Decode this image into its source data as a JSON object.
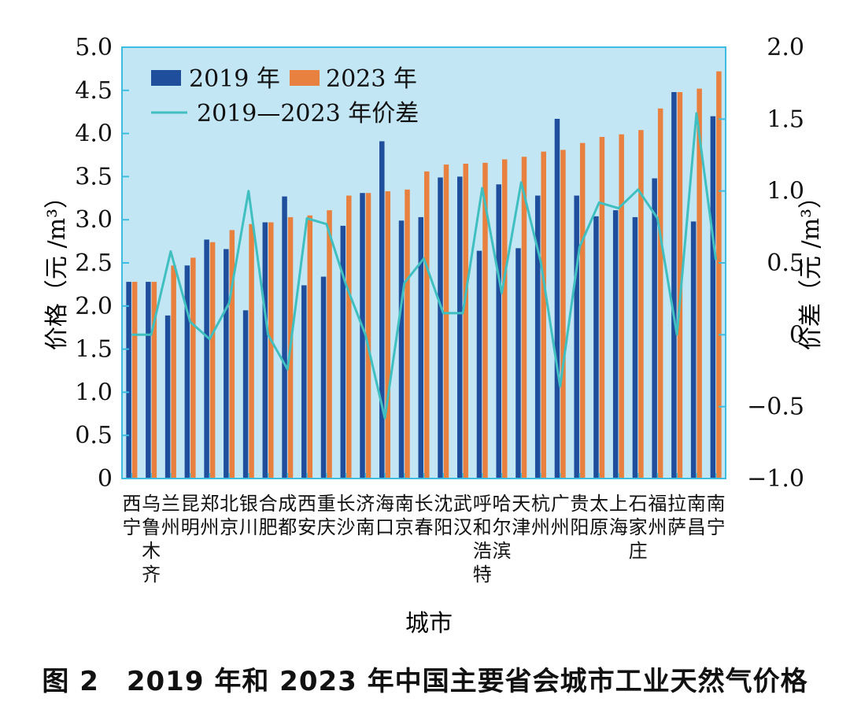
{
  "caption": "图 2　2019 年和 2023 年中国主要省会城市工业天然气价格",
  "colors": {
    "plot_bg": "#c3e6f5",
    "axis": "#3fbde0",
    "series_2019": "#1f4e9c",
    "series_2023": "#e8803f",
    "series_diff": "#3fbfbf"
  },
  "chart_data": {
    "type": "bar",
    "xlabel": "城市",
    "ylabel": "价格（元 /m³）",
    "ylabel2": "价差（元 /m³）",
    "ylim": [
      0,
      5
    ],
    "ylim2": [
      -1,
      2
    ],
    "yticks": [
      "0",
      "0.5",
      "1.0",
      "1.5",
      "2.0",
      "2.5",
      "3.0",
      "3.5",
      "4.0",
      "4.5",
      "5.0"
    ],
    "yticks2": [
      "−1.0",
      "−0.5",
      "0",
      "0.5",
      "1.0",
      "1.5",
      "2.0"
    ],
    "legend_position": "top-left",
    "categories": [
      "西宁",
      "乌鲁木齐",
      "兰州",
      "昆明",
      "郑州",
      "北京",
      "银川",
      "合肥",
      "成都",
      "西安",
      "重庆",
      "长沙",
      "济南",
      "海口",
      "南京",
      "长春",
      "沈阳",
      "武汉",
      "呼和浩特",
      "哈尔滨",
      "天津",
      "杭州",
      "广州",
      "贵阳",
      "太原",
      "上海",
      "石家庄",
      "福州",
      "拉萨",
      "南昌",
      "南宁"
    ],
    "series": [
      {
        "name": "2019 年",
        "kind": "bar",
        "axis": "left",
        "values": [
          2.28,
          2.28,
          1.89,
          2.47,
          2.77,
          2.66,
          1.95,
          2.97,
          3.27,
          2.24,
          2.34,
          2.93,
          3.31,
          3.91,
          2.99,
          3.03,
          3.49,
          3.5,
          2.64,
          3.41,
          2.67,
          3.28,
          4.17,
          3.28,
          3.04,
          3.11,
          3.03,
          3.48,
          4.48,
          2.98,
          4.2
        ]
      },
      {
        "name": "2023 年",
        "kind": "bar",
        "axis": "left",
        "values": [
          2.28,
          2.28,
          2.47,
          2.56,
          2.74,
          2.88,
          2.95,
          2.97,
          3.03,
          3.05,
          3.11,
          3.28,
          3.31,
          3.33,
          3.35,
          3.56,
          3.64,
          3.65,
          3.66,
          3.7,
          3.73,
          3.79,
          3.81,
          3.89,
          3.96,
          3.99,
          4.04,
          4.29,
          4.48,
          4.52,
          4.72
        ]
      },
      {
        "name": "2019—2023 年价差",
        "kind": "line",
        "axis": "right",
        "values": [
          0,
          0,
          0.58,
          0.09,
          -0.03,
          0.22,
          1.0,
          0,
          -0.24,
          0.81,
          0.77,
          0.35,
          0,
          -0.58,
          0.36,
          0.53,
          0.15,
          0.15,
          1.02,
          0.29,
          1.06,
          0.51,
          -0.36,
          0.61,
          0.92,
          0.88,
          1.01,
          0.81,
          0,
          1.54,
          0.52
        ]
      }
    ]
  }
}
